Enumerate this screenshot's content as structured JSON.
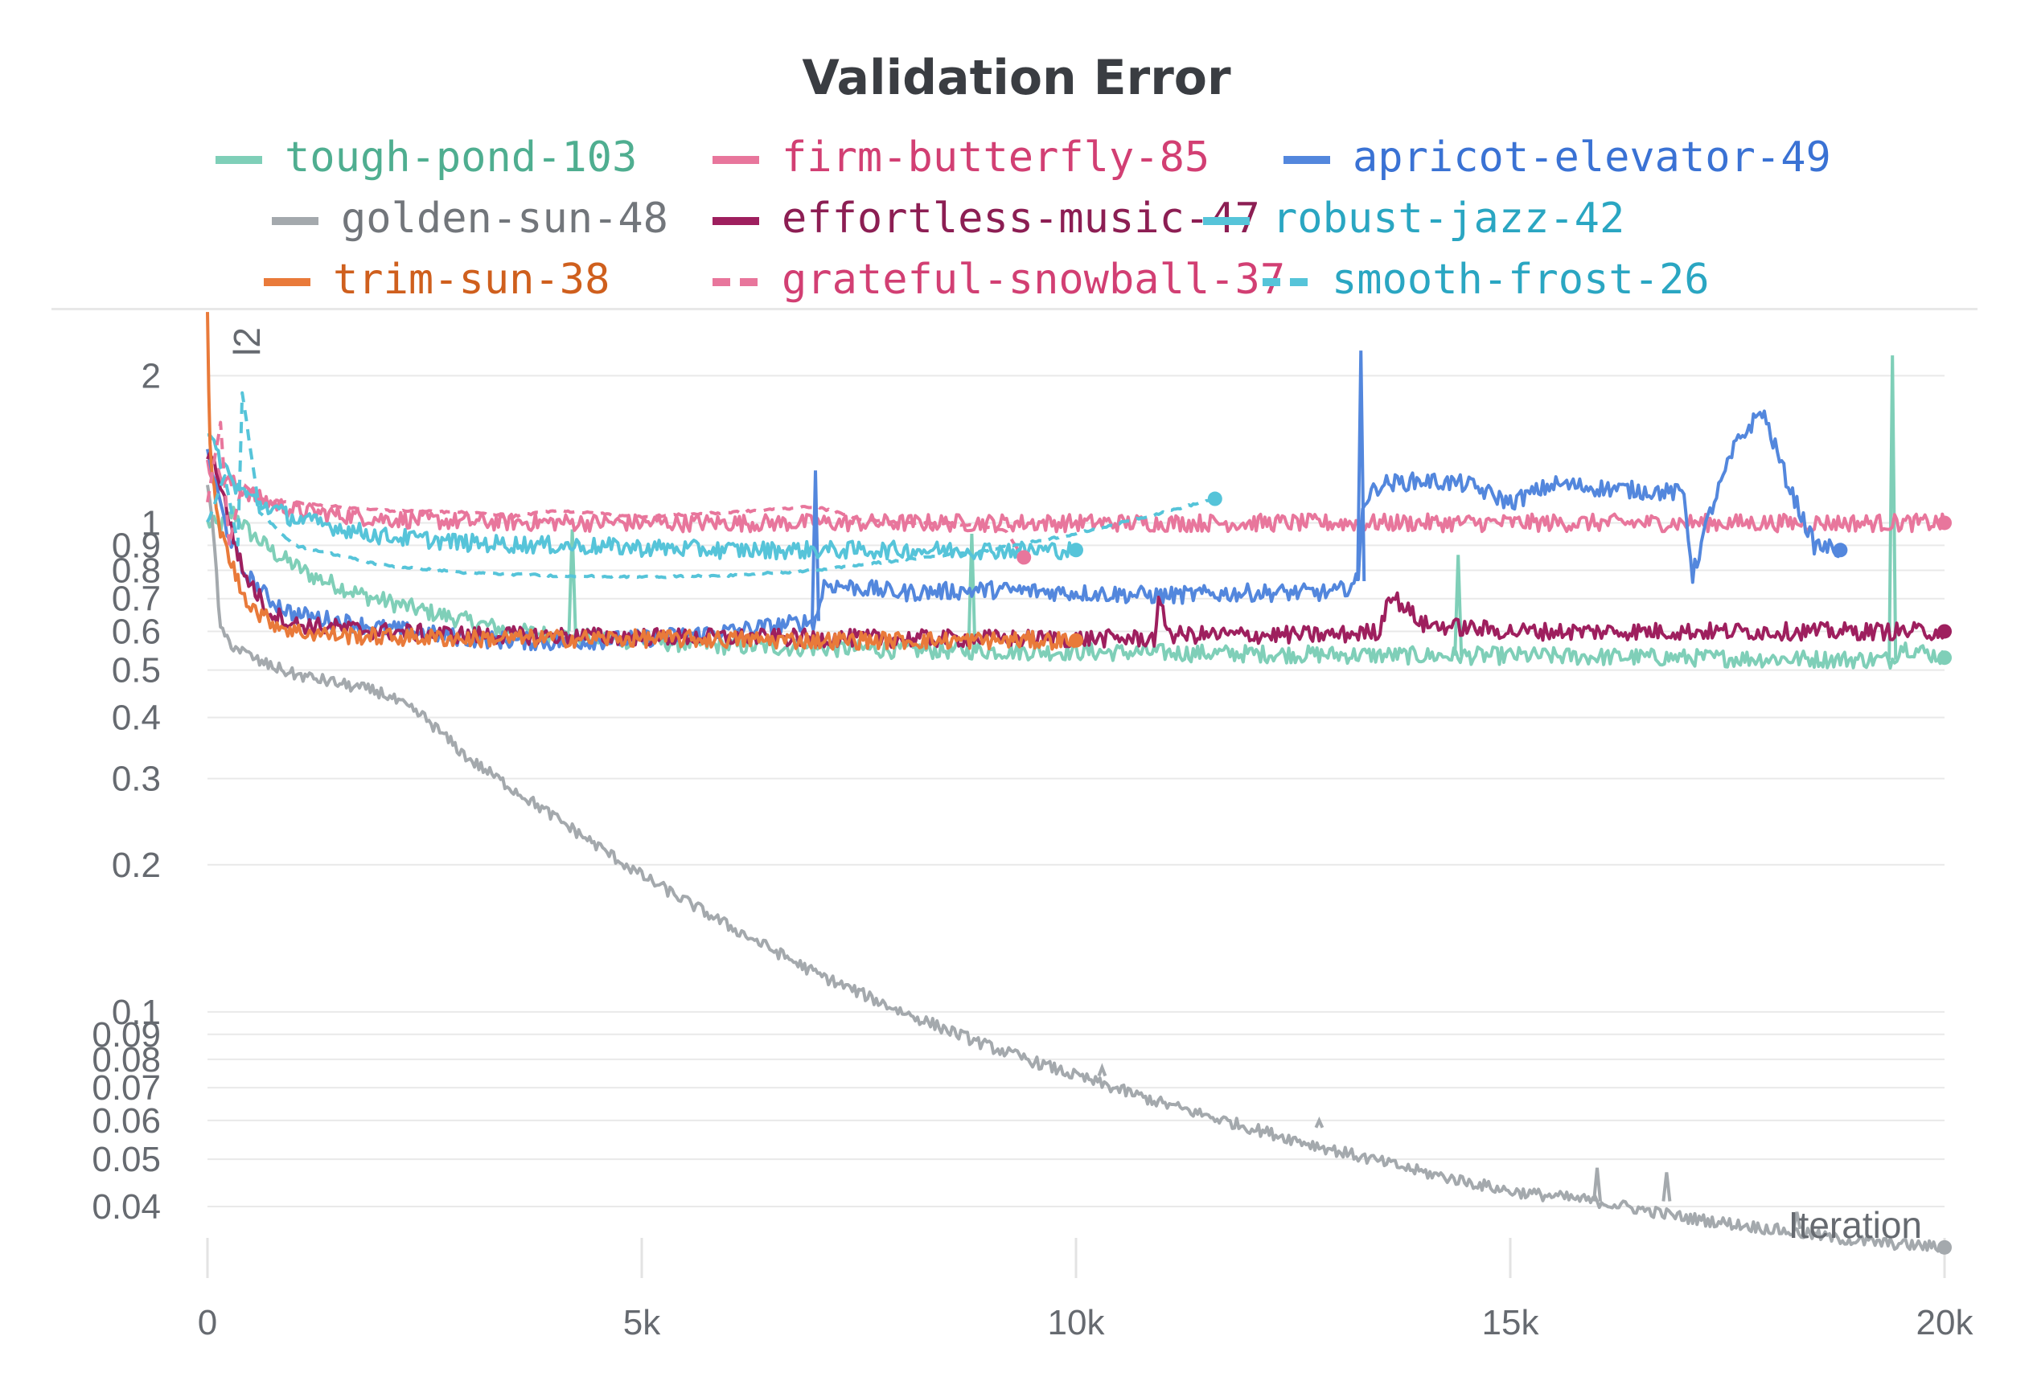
{
  "chart_data": {
    "type": "line",
    "title": "Validation Error",
    "xlabel": "Iteration",
    "ylabel": "",
    "panel_label": "l2",
    "xlim": [
      0,
      20000
    ],
    "ylim": [
      0.032,
      2.6
    ],
    "yscale": "log",
    "x_ticks": [
      {
        "value": 0,
        "label": "0"
      },
      {
        "value": 5000,
        "label": "5k"
      },
      {
        "value": 10000,
        "label": "10k"
      },
      {
        "value": 15000,
        "label": "15k"
      },
      {
        "value": 20000,
        "label": "20k"
      }
    ],
    "y_ticks": [
      {
        "value": 2,
        "label": "2"
      },
      {
        "value": 1,
        "label": "1"
      },
      {
        "value": 0.9,
        "label": "0.9"
      },
      {
        "value": 0.8,
        "label": "0.8"
      },
      {
        "value": 0.7,
        "label": "0.7"
      },
      {
        "value": 0.6,
        "label": "0.6"
      },
      {
        "value": 0.5,
        "label": "0.5"
      },
      {
        "value": 0.4,
        "label": "0.4"
      },
      {
        "value": 0.3,
        "label": "0.3"
      },
      {
        "value": 0.2,
        "label": "0.2"
      },
      {
        "value": 0.1,
        "label": "0.1"
      },
      {
        "value": 0.09,
        "label": "0.09"
      },
      {
        "value": 0.08,
        "label": "0.08"
      },
      {
        "value": 0.07,
        "label": "0.07"
      },
      {
        "value": 0.06,
        "label": "0.06"
      },
      {
        "value": 0.05,
        "label": "0.05"
      },
      {
        "value": 0.04,
        "label": "0.04"
      }
    ],
    "grid": true,
    "legend_position": "top",
    "series": [
      {
        "name": "tough-pond-103",
        "color": "#7fcfb8",
        "text_color": "#4fae90",
        "dash": false,
        "x": [
          0,
          150,
          300,
          500,
          800,
          1200,
          1800,
          2500,
          3500,
          4500,
          6000,
          8000,
          10000,
          12000,
          14000,
          15000,
          17000,
          19400,
          19500,
          20000
        ],
        "y": [
          1.0,
          0.98,
          1.05,
          0.95,
          0.86,
          0.78,
          0.71,
          0.66,
          0.6,
          0.58,
          0.56,
          0.55,
          0.545,
          0.54,
          0.535,
          0.535,
          0.53,
          0.525,
          0.56,
          0.53
        ],
        "spikes": [
          {
            "x": 4200,
            "y": 0.97
          },
          {
            "x": 8800,
            "y": 0.95
          },
          {
            "x": 14400,
            "y": 0.86
          },
          {
            "x": 19400,
            "y": 2.2
          }
        ],
        "end_marker": true
      },
      {
        "name": "firm-butterfly-85",
        "color": "#e8769c",
        "text_color": "#d23f73",
        "dash": false,
        "x": [
          0,
          100,
          300,
          600,
          1000,
          2000,
          3000,
          5000,
          10000,
          15000,
          20000
        ],
        "y": [
          1.3,
          1.25,
          1.2,
          1.12,
          1.06,
          1.02,
          1.005,
          1.0,
          1.0,
          1.0,
          1.0
        ],
        "end_marker": true
      },
      {
        "name": "apricot-elevator-49",
        "color": "#5387dd",
        "text_color": "#3a72d4",
        "dash": false,
        "x": [
          0,
          200,
          400,
          700,
          1000,
          1500,
          2000,
          3000,
          4000,
          5000,
          6000,
          7000,
          7100,
          8000,
          9000,
          10000,
          11000,
          12000,
          13000,
          13250,
          13300,
          13500,
          14000,
          14500,
          15000,
          15500,
          16000,
          17000,
          17100,
          17300,
          17600,
          17900,
          18200,
          18500,
          18800
        ],
        "y": [
          1.4,
          1.0,
          0.8,
          0.7,
          0.65,
          0.63,
          0.61,
          0.58,
          0.57,
          0.58,
          0.6,
          0.63,
          0.75,
          0.72,
          0.73,
          0.72,
          0.71,
          0.72,
          0.72,
          0.76,
          1.1,
          1.2,
          1.22,
          1.2,
          1.1,
          1.2,
          1.18,
          1.15,
          0.78,
          1.05,
          1.45,
          1.7,
          1.2,
          0.9,
          0.88
        ],
        "spikes": [
          {
            "x": 7000,
            "y": 1.28
          },
          {
            "x": 13280,
            "y": 2.25
          }
        ],
        "end_marker": true
      },
      {
        "name": "golden-sun-48",
        "color": "#a4a9ad",
        "text_color": "#72767b",
        "dash": false,
        "x": [
          0,
          80,
          150,
          300,
          600,
          1000,
          1500,
          2000,
          2500,
          3000,
          4000,
          5000,
          6000,
          7000,
          8000,
          9000,
          10000,
          11000,
          12000,
          13000,
          14000,
          15000,
          16000,
          17000,
          18000,
          19000,
          20000
        ],
        "y": [
          1.2,
          0.9,
          0.6,
          0.56,
          0.52,
          0.49,
          0.47,
          0.45,
          0.4,
          0.33,
          0.25,
          0.19,
          0.15,
          0.12,
          0.1,
          0.085,
          0.074,
          0.065,
          0.058,
          0.052,
          0.047,
          0.043,
          0.041,
          0.038,
          0.036,
          0.034,
          0.033
        ],
        "spikes": [
          {
            "x": 10300,
            "y": 0.077
          },
          {
            "x": 12800,
            "y": 0.06
          },
          {
            "x": 16000,
            "y": 0.048
          },
          {
            "x": 16800,
            "y": 0.047
          },
          {
            "x": 18300,
            "y": 0.039
          }
        ],
        "end_marker": true
      },
      {
        "name": "effortless-music-47",
        "color": "#9e1f5e",
        "text_color": "#8c1e53",
        "dash": false,
        "x": [
          0,
          100,
          200,
          400,
          700,
          1000,
          2000,
          3000,
          5000,
          8000,
          10000,
          10900,
          10950,
          11100,
          13000,
          13500,
          13600,
          14000,
          15000,
          20000
        ],
        "y": [
          1.4,
          1.3,
          1.1,
          0.8,
          0.66,
          0.62,
          0.6,
          0.59,
          0.585,
          0.58,
          0.58,
          0.58,
          0.68,
          0.59,
          0.59,
          0.6,
          0.72,
          0.62,
          0.6,
          0.6
        ],
        "end_marker": true
      },
      {
        "name": "robust-jazz-42",
        "color": "#56c4d9",
        "text_color": "#2aa6c2",
        "dash": false,
        "x": [
          0,
          150,
          300,
          600,
          1000,
          2000,
          3000,
          4000,
          5000,
          6000,
          8000,
          10000
        ],
        "y": [
          1.5,
          1.35,
          1.2,
          1.1,
          1.02,
          0.94,
          0.91,
          0.9,
          0.89,
          0.88,
          0.88,
          0.88
        ],
        "end_marker": true
      },
      {
        "name": "trim-sun-38",
        "color": "#e97a3a",
        "text_color": "#cf5f1d",
        "dash": false,
        "x": [
          0,
          30,
          100,
          200,
          400,
          600,
          800,
          1000,
          1500,
          2000,
          3000,
          5000,
          7000,
          10000
        ],
        "y": [
          2.6,
          1.4,
          1.05,
          0.9,
          0.72,
          0.65,
          0.62,
          0.6,
          0.59,
          0.585,
          0.58,
          0.58,
          0.575,
          0.575
        ],
        "end_marker": true
      },
      {
        "name": "grateful-snowball-37",
        "color": "#e8769c",
        "text_color": "#d23f73",
        "dash": true,
        "x": [
          0,
          150,
          250,
          400,
          600,
          1000,
          2000,
          3000,
          3500,
          4000,
          5000,
          6000,
          7000,
          7500,
          8000,
          8500,
          9000,
          9200,
          9400
        ],
        "y": [
          1.1,
          1.6,
          0.9,
          1.2,
          1.12,
          1.1,
          1.06,
          1.05,
          1.03,
          1.06,
          1.03,
          1.05,
          1.08,
          1.02,
          1.0,
          1.0,
          0.98,
          0.96,
          0.85
        ],
        "end_marker": true
      },
      {
        "name": "smooth-frost-26",
        "color": "#56c4d9",
        "text_color": "#2aa6c2",
        "dash": true,
        "x": [
          0,
          200,
          350,
          400,
          600,
          1000,
          2000,
          3000,
          4000,
          5000,
          6000,
          7000,
          8000,
          9000,
          10000,
          11000,
          11600
        ],
        "y": [
          1.0,
          1.25,
          0.9,
          1.85,
          1.05,
          0.9,
          0.82,
          0.79,
          0.78,
          0.775,
          0.78,
          0.8,
          0.84,
          0.88,
          0.95,
          1.05,
          1.12
        ],
        "end_marker": true
      }
    ]
  }
}
